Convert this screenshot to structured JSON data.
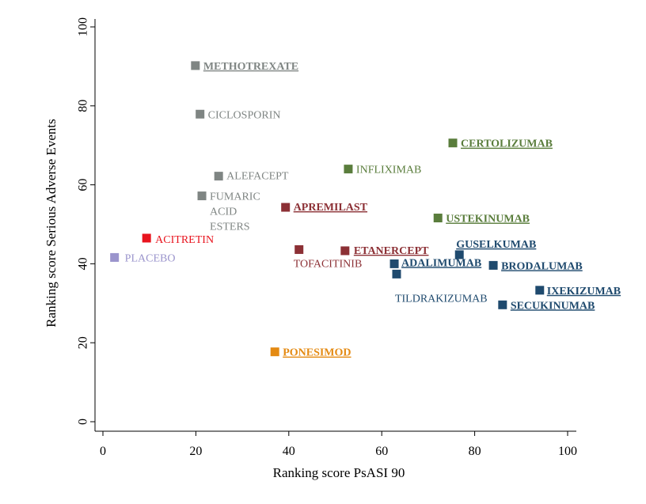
{
  "chart_data": {
    "type": "scatter",
    "title": "",
    "xlabel": "Ranking score PsASI 90",
    "ylabel": "Ranking score Serious Adverse Events",
    "xlim": [
      0,
      100
    ],
    "ylim": [
      0,
      100
    ],
    "xticks": [
      "0",
      "20",
      "40",
      "60",
      "80",
      "100"
    ],
    "yticks": [
      "0",
      "20",
      "40",
      "60",
      "80",
      "100"
    ],
    "grid": false,
    "legend": "none",
    "points": [
      {
        "label": "METHOTREXATE",
        "x": 19.9,
        "y": 90.2,
        "color": "#7f8583",
        "bold": true
      },
      {
        "label": "CICLOSPORIN",
        "x": 20.9,
        "y": 77.9,
        "color": "#7f8583",
        "bold": false
      },
      {
        "label": "ALEFACEPT",
        "x": 24.9,
        "y": 62.2,
        "color": "#7f8583",
        "bold": false
      },
      {
        "label": "FUMARIC\nACID\nESTERS",
        "x": 21.3,
        "y": 57.2,
        "color": "#7f8583",
        "bold": false
      },
      {
        "label": "ACITRETIN",
        "x": 9.4,
        "y": 46.5,
        "color": "#e8141e",
        "bold": false
      },
      {
        "label": "PLACEBO",
        "x": 2.5,
        "y": 41.6,
        "color": "#9a94cc",
        "bold": false
      },
      {
        "label": "APREMILAST",
        "x": 39.3,
        "y": 54.3,
        "color": "#8c3035",
        "bold": true
      },
      {
        "label": "TOFACITINIB",
        "x": 42.2,
        "y": 43.6,
        "color": "#8c3035",
        "bold": false
      },
      {
        "label": "ETANERCEPT",
        "x": 52.1,
        "y": 43.3,
        "color": "#8c3035",
        "bold": true
      },
      {
        "label": "INFLIXIMAB",
        "x": 52.8,
        "y": 64.0,
        "color": "#5a7d3c",
        "bold": false
      },
      {
        "label": "CERTOLIZUMAB",
        "x": 75.3,
        "y": 70.6,
        "color": "#5a7d3c",
        "bold": true
      },
      {
        "label": "USTEKINUMAB",
        "x": 72.1,
        "y": 51.6,
        "color": "#5a7d3c",
        "bold": true
      },
      {
        "label": "GUSELKUMAB",
        "x": 76.7,
        "y": 42.3,
        "color": "#1f4a6e",
        "bold": true
      },
      {
        "label": "ADALIMUMAB",
        "x": 62.7,
        "y": 40.0,
        "color": "#1f4a6e",
        "bold": true
      },
      {
        "label": "TILDRAKIZUMAB",
        "x": 63.2,
        "y": 37.4,
        "color": "#1f4a6e",
        "bold": false
      },
      {
        "label": "BRODALUMAB",
        "x": 84.0,
        "y": 39.6,
        "color": "#1f4a6e",
        "bold": true
      },
      {
        "label": "IXEKIZUMAB",
        "x": 94.0,
        "y": 33.3,
        "color": "#1f4a6e",
        "bold": true
      },
      {
        "label": "SECUKINUMAB",
        "x": 86.0,
        "y": 29.6,
        "color": "#1f4a6e",
        "bold": true
      },
      {
        "label": "PONESIMOD",
        "x": 37.0,
        "y": 17.7,
        "color": "#e48a12",
        "bold": true
      }
    ]
  }
}
